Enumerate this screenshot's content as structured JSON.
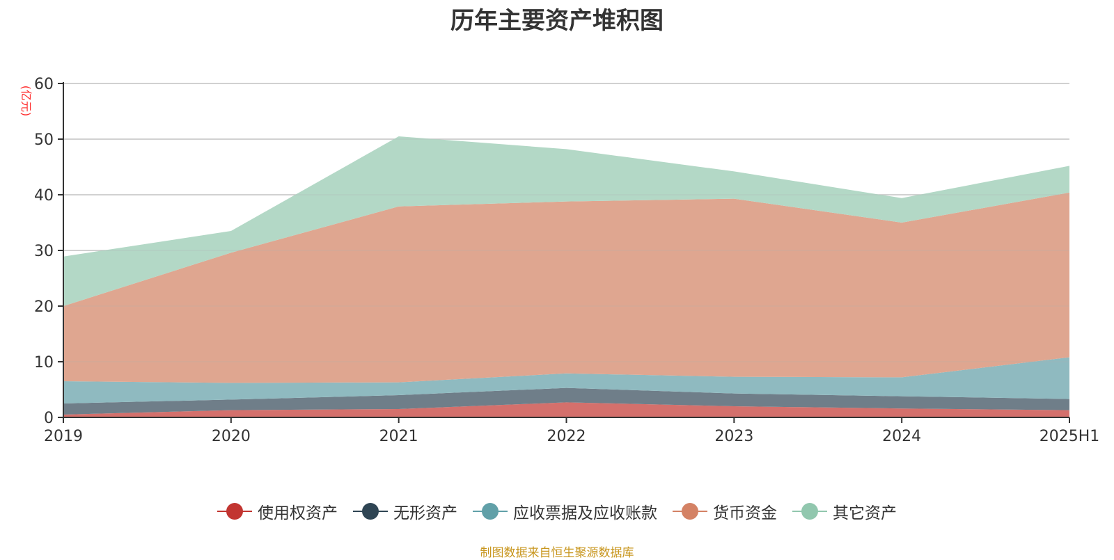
{
  "chart_data": {
    "type": "area",
    "stacked": true,
    "title": "历年主要资产堆积图",
    "unit_label": "(亿元)",
    "source_note": "制图数据来自恒生聚源数据库",
    "x": [
      "2019",
      "2020",
      "2021",
      "2022",
      "2023",
      "2024",
      "2025H1"
    ],
    "ylim": [
      0,
      60
    ],
    "yticks": [
      0,
      10,
      20,
      30,
      40,
      50,
      60
    ],
    "grid": true,
    "legend_position": "bottom",
    "series": [
      {
        "name": "使用权资产",
        "color": "#c23531",
        "fill": "#d4706c",
        "values": [
          0.5,
          1.3,
          1.5,
          2.7,
          2.0,
          1.6,
          1.3
        ]
      },
      {
        "name": "无形资产",
        "color": "#2f4554",
        "fill": "#6f7e89",
        "values": [
          2.0,
          1.9,
          2.5,
          2.6,
          2.3,
          2.2,
          2.0
        ]
      },
      {
        "name": "应收票据及应收账款",
        "color": "#61a0a8",
        "fill": "#8fbac0",
        "values": [
          4.0,
          3.0,
          2.3,
          2.6,
          3.0,
          3.4,
          7.5
        ]
      },
      {
        "name": "货币资金",
        "color": "#d48265",
        "fill": "#dfa690",
        "values": [
          13.5,
          23.4,
          31.6,
          30.9,
          32.0,
          27.8,
          29.6
        ]
      },
      {
        "name": "其它资产",
        "color": "#91c7ae",
        "fill": "#b3d8c6",
        "values": [
          8.9,
          3.9,
          12.6,
          9.4,
          4.9,
          4.4,
          4.8
        ]
      }
    ]
  }
}
